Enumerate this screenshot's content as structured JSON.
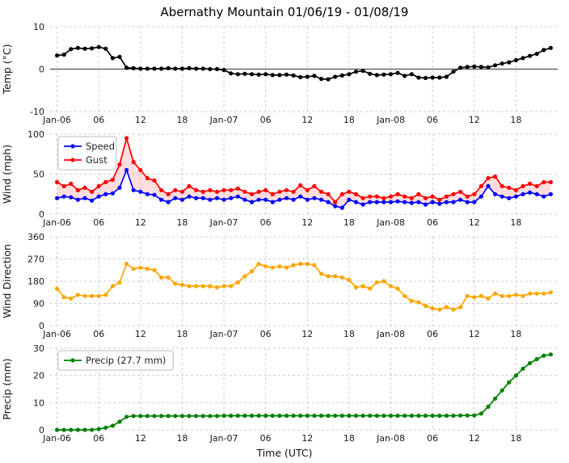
{
  "title": "Abernathy Mountain 01/06/19 - 01/08/19",
  "xlabel": "Time (UTC)",
  "x_axis": {
    "unit": "hours from Jan-06 00:00 UTC, 1 point per hour",
    "min": -1,
    "max": 72,
    "ticks": [
      0,
      6,
      12,
      18,
      24,
      30,
      36,
      42,
      48,
      54,
      60,
      66
    ],
    "labels": [
      "Jan-06",
      "06",
      "12",
      "18",
      "Jan-07",
      "06",
      "12",
      "18",
      "Jan-08",
      "06",
      "12",
      "18"
    ]
  },
  "chart_data": [
    {
      "type": "line",
      "id": "temp",
      "ylabel": "Temp (°C)",
      "ylim": [
        -10,
        10
      ],
      "yticks": [
        -10,
        0,
        10
      ],
      "zero_line": true,
      "grid": true,
      "series": [
        {
          "name": "Temp",
          "color": "#000000",
          "values": [
            3.2,
            3.4,
            4.7,
            5.0,
            4.8,
            4.9,
            5.2,
            4.8,
            2.6,
            2.9,
            0.3,
            0.2,
            0.1,
            0.1,
            0.1,
            0.1,
            0.2,
            0.1,
            0.1,
            0.2,
            0.1,
            0.1,
            0.0,
            0.0,
            -0.2,
            -1.0,
            -1.2,
            -1.1,
            -1.2,
            -1.3,
            -1.2,
            -1.4,
            -1.4,
            -1.3,
            -1.5,
            -1.9,
            -1.8,
            -1.6,
            -2.3,
            -2.4,
            -1.8,
            -1.5,
            -1.2,
            -0.6,
            -0.4,
            -1.1,
            -1.4,
            -1.3,
            -1.2,
            -0.9,
            -1.6,
            -1.2,
            -2.0,
            -2.1,
            -2.0,
            -2.0,
            -1.8,
            -0.6,
            0.3,
            0.5,
            0.6,
            0.5,
            0.4,
            0.9,
            1.3,
            1.6,
            2.1,
            2.6,
            3.1,
            3.6,
            4.5,
            5.0
          ]
        }
      ]
    },
    {
      "type": "line",
      "id": "wind",
      "ylabel": "Wind (mph)",
      "ylim": [
        0,
        100
      ],
      "yticks": [
        0,
        50,
        100
      ],
      "legend": true,
      "legend_position": "upper-left",
      "fill_between": true,
      "grid": true,
      "series": [
        {
          "name": "Speed",
          "color": "#0000ff",
          "values": [
            20,
            22,
            21,
            18,
            20,
            17,
            22,
            25,
            26,
            33,
            55,
            30,
            28,
            25,
            24,
            18,
            15,
            20,
            18,
            22,
            20,
            20,
            18,
            20,
            18,
            20,
            22,
            18,
            15,
            18,
            18,
            15,
            18,
            20,
            18,
            22,
            18,
            20,
            18,
            15,
            10,
            8,
            18,
            15,
            12,
            15,
            15,
            15,
            15,
            16,
            15,
            14,
            15,
            12,
            15,
            13,
            15,
            15,
            18,
            15,
            15,
            22,
            35,
            25,
            22,
            20,
            22,
            25,
            27,
            25,
            22,
            25
          ]
        },
        {
          "name": "Gust",
          "color": "#ff0000",
          "values": [
            40,
            35,
            38,
            30,
            33,
            28,
            35,
            40,
            43,
            62,
            95,
            65,
            55,
            45,
            42,
            30,
            25,
            30,
            28,
            35,
            30,
            28,
            30,
            28,
            30,
            30,
            32,
            28,
            25,
            28,
            30,
            25,
            28,
            30,
            28,
            36,
            30,
            35,
            28,
            25,
            15,
            25,
            28,
            25,
            20,
            22,
            22,
            20,
            22,
            25,
            22,
            20,
            25,
            20,
            22,
            18,
            22,
            25,
            28,
            22,
            25,
            35,
            45,
            47,
            35,
            33,
            30,
            35,
            38,
            35,
            40,
            40
          ]
        }
      ]
    },
    {
      "type": "line",
      "id": "wind-direction",
      "ylabel": "Wind Direction",
      "ylim": [
        0,
        360
      ],
      "yticks": [
        0,
        90,
        180,
        270,
        360
      ],
      "grid": true,
      "series": [
        {
          "name": "Wind Direction",
          "color": "#ffa500",
          "values": [
            150,
            115,
            110,
            125,
            120,
            120,
            120,
            125,
            160,
            175,
            250,
            230,
            235,
            230,
            225,
            195,
            195,
            170,
            165,
            160,
            160,
            160,
            160,
            155,
            160,
            160,
            175,
            200,
            220,
            250,
            240,
            235,
            240,
            235,
            245,
            250,
            250,
            245,
            210,
            200,
            200,
            195,
            185,
            155,
            160,
            150,
            175,
            180,
            160,
            150,
            120,
            100,
            95,
            80,
            70,
            65,
            75,
            65,
            75,
            120,
            115,
            120,
            110,
            130,
            120,
            120,
            125,
            120,
            130,
            130,
            130,
            135
          ]
        }
      ]
    },
    {
      "type": "line",
      "id": "precip",
      "ylabel": "Precip (mm)",
      "ylim": [
        0,
        30
      ],
      "yticks": [
        0,
        10,
        20,
        30
      ],
      "legend": true,
      "legend_position": "upper-left",
      "grid": true,
      "series": [
        {
          "name": "Precip (27.7 mm)",
          "color": "#008000",
          "values": [
            0,
            0,
            0,
            0,
            0,
            0,
            0.3,
            0.8,
            1.5,
            3.0,
            4.8,
            5.1,
            5.1,
            5.1,
            5.1,
            5.1,
            5.1,
            5.1,
            5.1,
            5.1,
            5.1,
            5.1,
            5.1,
            5.1,
            5.2,
            5.2,
            5.2,
            5.2,
            5.2,
            5.2,
            5.2,
            5.2,
            5.2,
            5.2,
            5.2,
            5.2,
            5.2,
            5.2,
            5.2,
            5.2,
            5.2,
            5.2,
            5.2,
            5.2,
            5.2,
            5.2,
            5.2,
            5.2,
            5.2,
            5.2,
            5.2,
            5.2,
            5.2,
            5.2,
            5.2,
            5.2,
            5.2,
            5.2,
            5.3,
            5.3,
            5.3,
            6.0,
            8.5,
            11.5,
            14.5,
            17.5,
            20.0,
            22.5,
            24.5,
            26.0,
            27.3,
            27.7
          ]
        }
      ]
    }
  ],
  "colors": {
    "grid": "#cccccc",
    "tick_text": "#1a1a1a",
    "fill_between": "#ff6464"
  }
}
